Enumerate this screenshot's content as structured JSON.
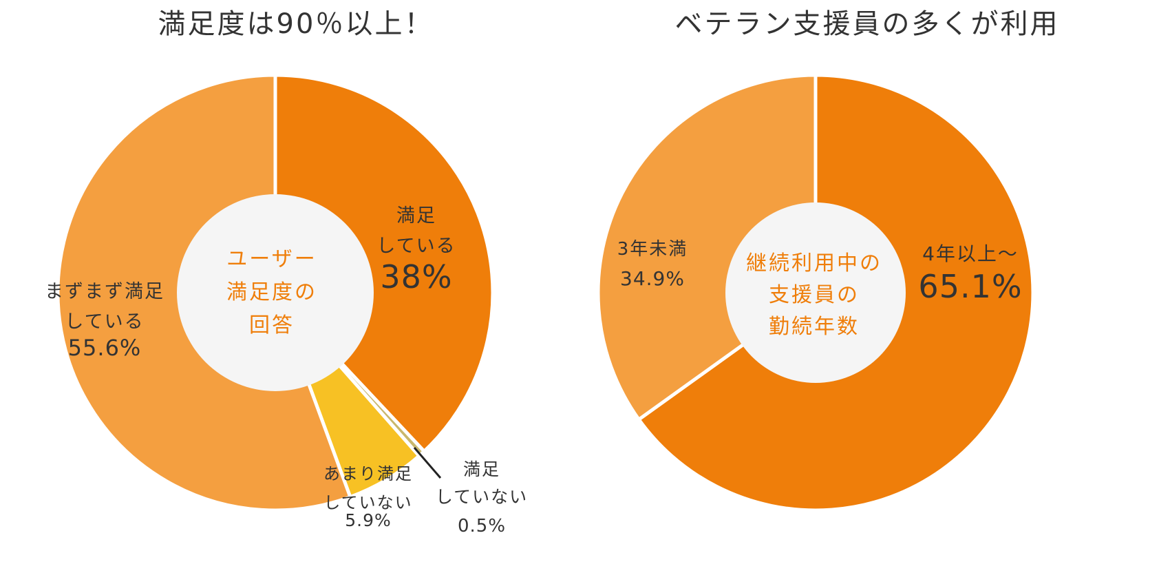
{
  "chart_data": [
    {
      "type": "pie",
      "title": "満足度は90％以上！",
      "center_label": [
        "ユーザー",
        "満足度の",
        "回答"
      ],
      "slices": [
        {
          "label": [
            "満足",
            "している"
          ],
          "value": 38,
          "display": "38%",
          "color": "#ef7e0a"
        },
        {
          "label": [
            "満足",
            "していない"
          ],
          "value": 0.5,
          "display": "0.5%",
          "color": "#c9b76c"
        },
        {
          "label": [
            "あまり満足",
            "していない"
          ],
          "value": 5.9,
          "display": "5.9%",
          "color": "#f7c124"
        },
        {
          "label": [
            "まずまず満足",
            "している"
          ],
          "value": 55.6,
          "display": "55.6%",
          "color": "#f49f40"
        }
      ]
    },
    {
      "type": "pie",
      "title": "ベテラン支援員の多くが利用",
      "center_label": [
        "継続利用中の",
        "支援員の",
        "勤続年数"
      ],
      "slices": [
        {
          "label": [
            "4年以上～"
          ],
          "value": 65.1,
          "display": "65.1%",
          "color": "#ef7e0a"
        },
        {
          "label": [
            "3年未満"
          ],
          "value": 34.9,
          "display": "34.9%",
          "color": "#f49f40"
        }
      ]
    }
  ],
  "colors": {
    "center_fill": "#f5f5f5",
    "center_text": "#ef7e0a",
    "text": "#333333",
    "separator": "#ffffff"
  }
}
